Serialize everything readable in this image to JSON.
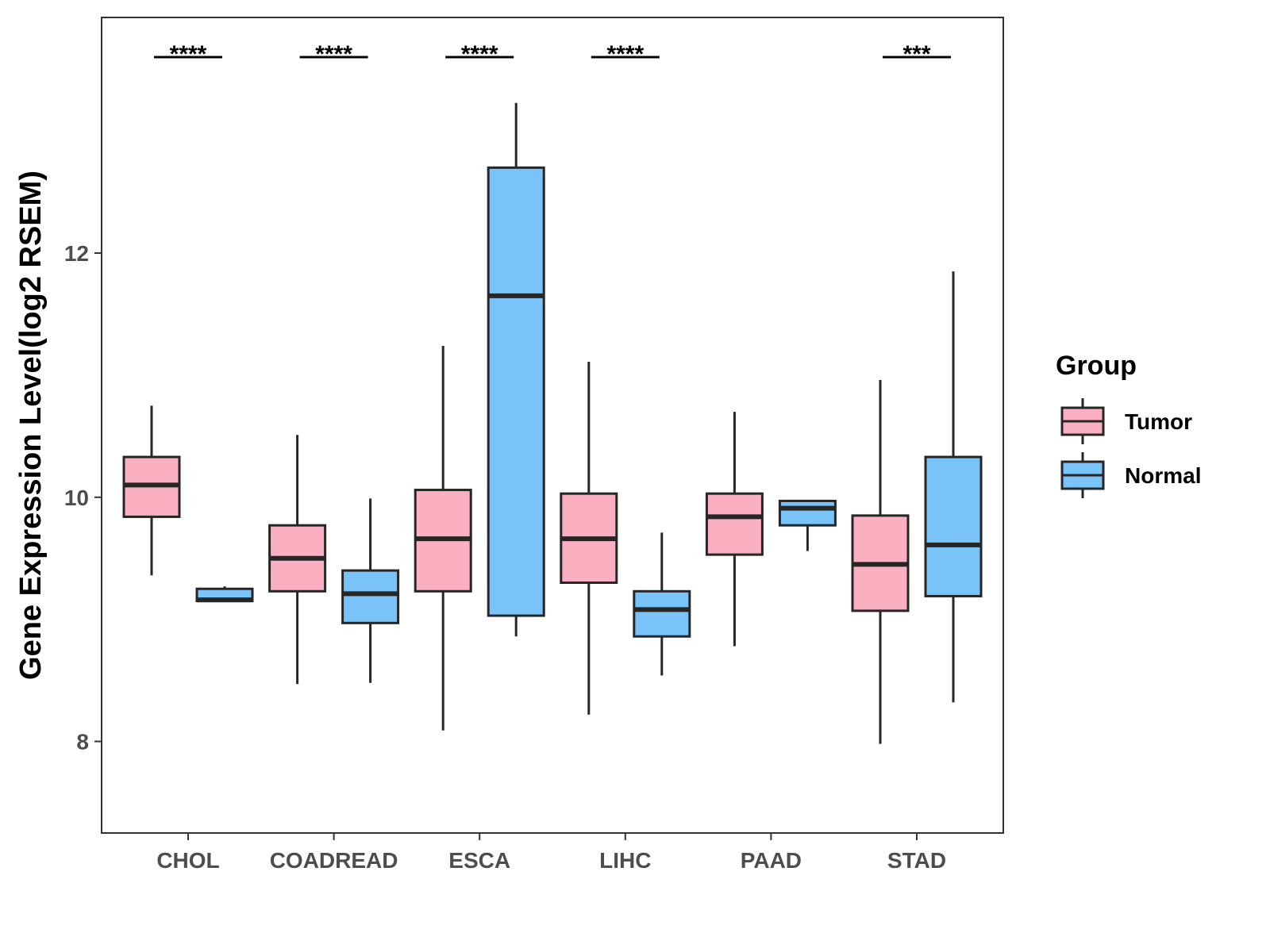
{
  "chart_data": {
    "type": "boxplot",
    "title": "",
    "xlabel": "",
    "ylabel": "Gene Expression Level(log2 RSEM)",
    "ylim": [
      7.25,
      13.93
    ],
    "yticks": [
      8,
      10,
      12
    ],
    "grid": false,
    "categories": [
      "CHOL",
      "COADREAD",
      "ESCA",
      "LIHC",
      "PAAD",
      "STAD"
    ],
    "legend": {
      "title": "Group",
      "position": "right",
      "entries": [
        "Tumor",
        "Normal"
      ]
    },
    "colors": {
      "Tumor": "#FBB0C1",
      "Normal": "#79C3F9",
      "outline": "#262626"
    },
    "series": [
      {
        "name": "Tumor",
        "boxes": [
          {
            "min": 9.36,
            "q1": 9.84,
            "median": 10.1,
            "q3": 10.33,
            "max": 10.75
          },
          {
            "min": 8.47,
            "q1": 9.23,
            "median": 9.5,
            "q3": 9.77,
            "max": 10.51
          },
          {
            "min": 8.09,
            "q1": 9.23,
            "median": 9.66,
            "q3": 10.06,
            "max": 11.24
          },
          {
            "min": 8.22,
            "q1": 9.3,
            "median": 9.66,
            "q3": 10.03,
            "max": 11.11
          },
          {
            "min": 8.78,
            "q1": 9.53,
            "median": 9.84,
            "q3": 10.03,
            "max": 10.7
          },
          {
            "min": 7.98,
            "q1": 9.07,
            "median": 9.45,
            "q3": 9.85,
            "max": 10.96
          }
        ]
      },
      {
        "name": "Normal",
        "boxes": [
          {
            "min": 9.15,
            "q1": 9.15,
            "median": 9.16,
            "q3": 9.25,
            "max": 9.27
          },
          {
            "min": 8.48,
            "q1": 8.97,
            "median": 9.21,
            "q3": 9.4,
            "max": 9.99
          },
          {
            "min": 8.86,
            "q1": 9.03,
            "median": 11.65,
            "q3": 12.7,
            "max": 13.23
          },
          {
            "min": 8.54,
            "q1": 8.86,
            "median": 9.08,
            "q3": 9.23,
            "max": 9.71
          },
          {
            "min": 9.56,
            "q1": 9.77,
            "median": 9.91,
            "q3": 9.97,
            "max": 9.97
          },
          {
            "min": 8.32,
            "q1": 9.19,
            "median": 9.61,
            "q3": 10.33,
            "max": 11.85
          }
        ]
      }
    ],
    "significance": [
      "****",
      "****",
      "****",
      "****",
      "",
      "***"
    ]
  }
}
